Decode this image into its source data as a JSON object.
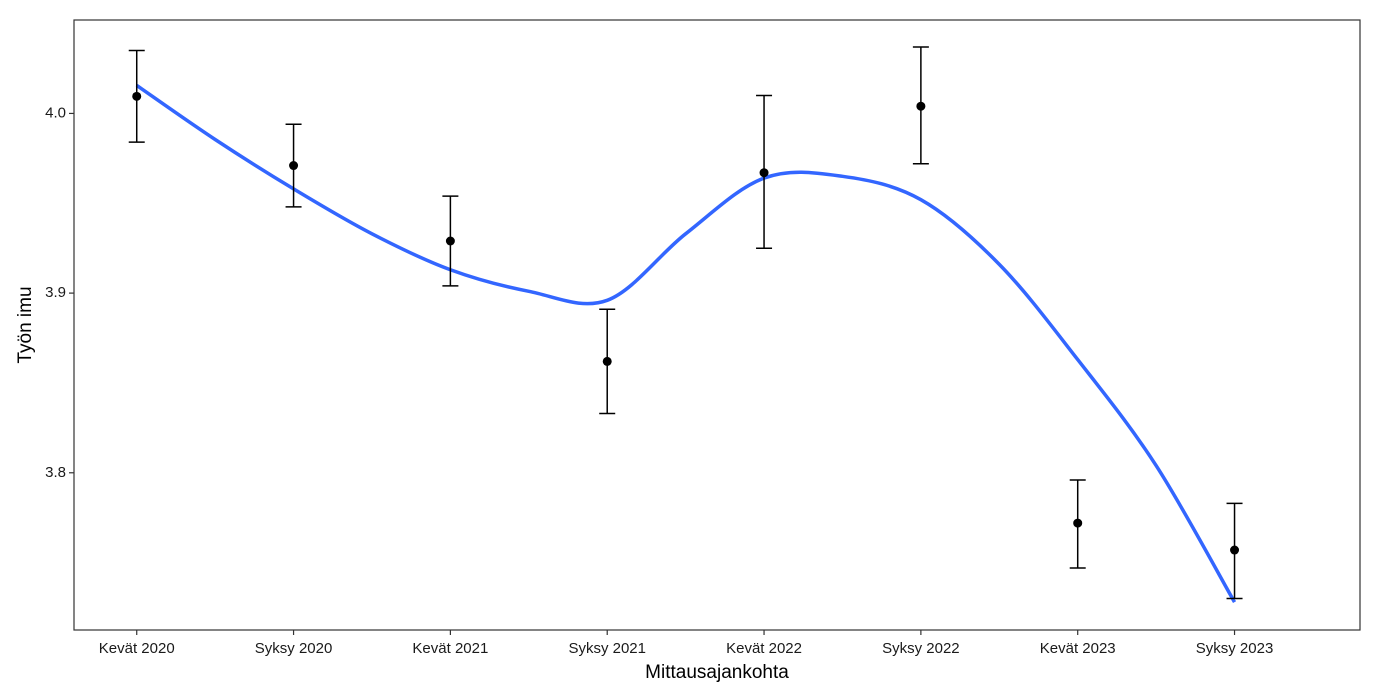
{
  "chart_data": {
    "type": "errorbar",
    "x_label": "Mittausajankohta",
    "y_label": "Työn imu",
    "categories": [
      "Kevät 2020",
      "Syksy 2020",
      "Kevät 2021",
      "Syksy 2021",
      "Kevät 2022",
      "Syksy 2022",
      "Kevät 2023",
      "Syksy 2023"
    ],
    "values": [
      4.0095,
      3.971,
      3.929,
      3.862,
      3.967,
      4.004,
      3.772,
      3.757
    ],
    "lower": [
      3.984,
      3.948,
      3.904,
      3.833,
      3.925,
      3.972,
      3.747,
      3.73
    ],
    "upper": [
      4.035,
      3.994,
      3.954,
      3.891,
      4.01,
      4.037,
      3.796,
      3.783
    ],
    "color": "#000000",
    "trend": {
      "color": "#3366ff",
      "x": [
        1,
        1.5,
        2,
        2.5,
        3,
        3.5,
        4,
        4.5,
        5,
        5.5,
        6,
        6.5,
        7,
        7.5,
        8
      ],
      "values": [
        4.0156,
        3.9855,
        3.958,
        3.933,
        3.913,
        3.901,
        3.896,
        3.933,
        3.964,
        3.965,
        3.952,
        3.916,
        3.863,
        3.804,
        3.728
      ]
    },
    "ylim": [
      3.7125,
      4.052
    ],
    "yticks": [
      3.8,
      3.9,
      {
        "value": 4,
        "label": "4.0"
      }
    ],
    "grid": false
  }
}
